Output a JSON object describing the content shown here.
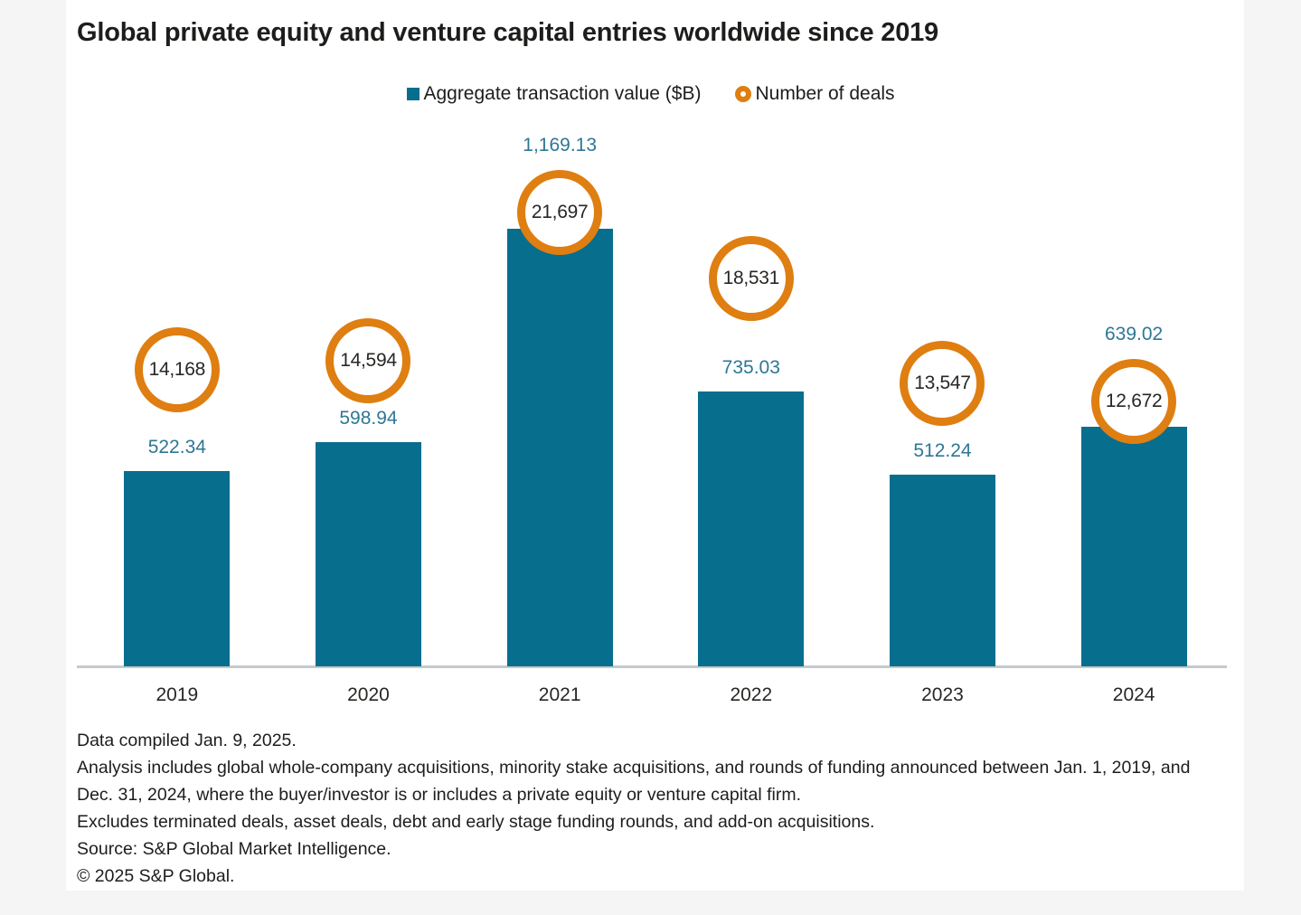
{
  "header": {
    "title": "Global private equity and venture capital entries worldwide since 2019"
  },
  "legend": [
    {
      "label": "Aggregate transaction value ($B)",
      "marker": "square",
      "color": "#076E8D"
    },
    {
      "label": "Number of deals",
      "marker": "ring",
      "color": "#DF7E11"
    }
  ],
  "chart_data": {
    "type": "bar",
    "title": "Global private equity and venture capital entries worldwide since 2019",
    "xlabel": "",
    "ylabel": "",
    "categories": [
      "2019",
      "2020",
      "2021",
      "2022",
      "2023",
      "2024"
    ],
    "series": [
      {
        "name": "Aggregate transaction value ($B)",
        "mark": "bar",
        "color": "#076E8D",
        "values": [
          522.34,
          598.94,
          1169.13,
          735.03,
          512.24,
          639.02
        ],
        "labels": [
          "522.34",
          "598.94",
          "1,169.13",
          "735.03",
          "512.24",
          "639.02"
        ]
      },
      {
        "name": "Number of deals",
        "mark": "circle-marker",
        "color": "#DF7E11",
        "values": [
          14168,
          14594,
          21697,
          18531,
          13547,
          12672
        ],
        "labels": [
          "14,168",
          "14,594",
          "21,697",
          "18,531",
          "13,547",
          "12,672"
        ]
      }
    ],
    "value_axis_range": [
      0,
      1169.13
    ],
    "deals_axis_range": [
      0,
      21697
    ],
    "grid": false,
    "legend_position": "top-center",
    "data_labels": true
  },
  "footnotes": [
    "Data compiled Jan. 9, 2025.",
    "Analysis includes global whole-company acquisitions, minority stake acquisitions, and rounds of funding announced between Jan. 1, 2019, and Dec. 31, 2024, where the buyer/investor is or includes a private equity or venture capital firm.",
    "Excludes terminated deals, asset deals, debt and early stage funding rounds, and add-on acquisitions.",
    "Source: S&P Global Market Intelligence.",
    "© 2025 S&P Global."
  ],
  "colors": {
    "bar": "#076E8D",
    "circle_ring": "#DF7E11",
    "value_label": "#2E7795",
    "deal_label": "#272725",
    "axis": "#C6C9CB",
    "title": "#1D1D1B",
    "page_bg": "#F5F5F5",
    "card_bg": "#FFFFFF"
  }
}
